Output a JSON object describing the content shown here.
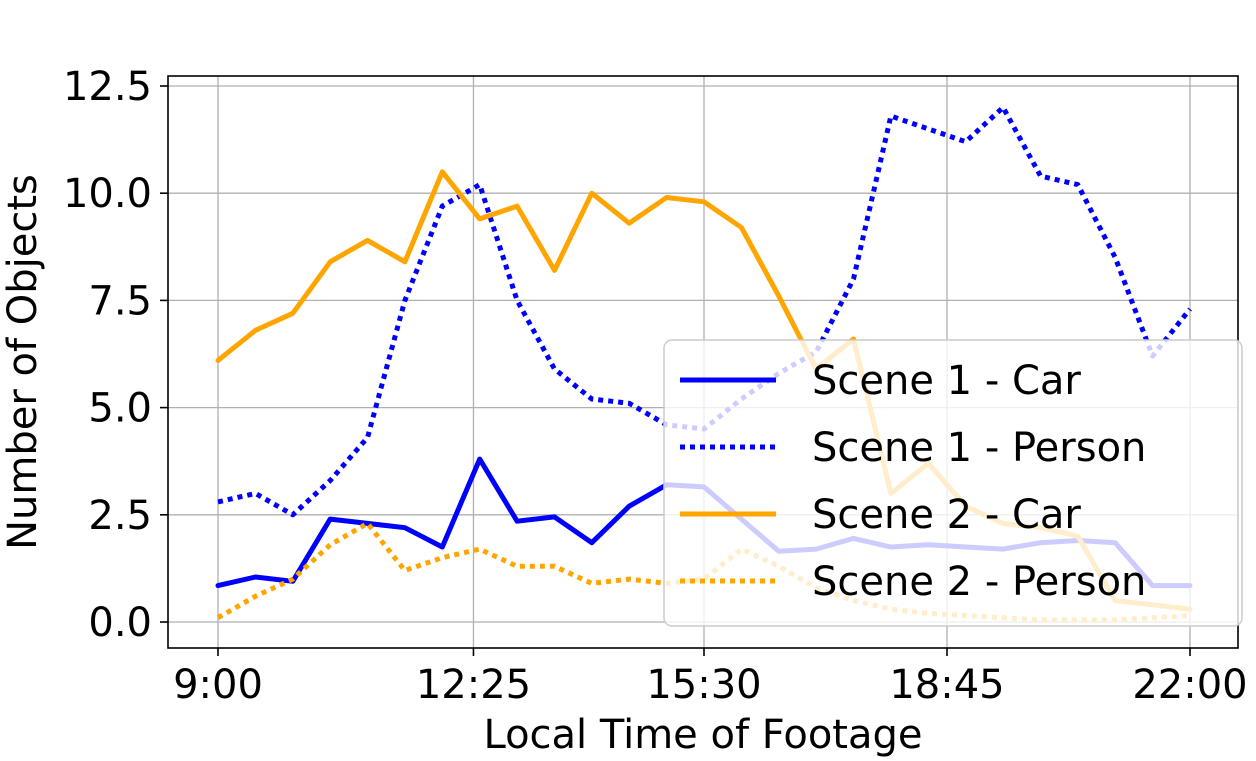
{
  "chart_data": {
    "type": "line",
    "xlabel": "Local Time of Footage",
    "ylabel": "Number of Objects",
    "x_ticks": [
      "9:00",
      "12:25",
      "15:30",
      "18:45",
      "22:00"
    ],
    "y_ticks": [
      "0.0",
      "2.5",
      "5.0",
      "7.5",
      "10.0",
      "12.5"
    ],
    "xlim": [
      "9:00",
      "22:00"
    ],
    "ylim": [
      0,
      12.5
    ],
    "grid": true,
    "legend_position": "lower-right",
    "x": [
      "9:00",
      "9:30",
      "10:00",
      "10:30",
      "11:00",
      "11:30",
      "12:00",
      "12:30",
      "13:00",
      "13:30",
      "14:00",
      "14:30",
      "15:00",
      "15:30",
      "16:00",
      "16:30",
      "17:00",
      "17:30",
      "18:00",
      "18:30",
      "19:00",
      "19:30",
      "20:00",
      "20:30",
      "21:00",
      "21:30",
      "22:00"
    ],
    "series": [
      {
        "name": "Scene 1 - Car",
        "color": "#0000ff",
        "style": "solid",
        "values": [
          0.85,
          1.05,
          0.95,
          2.4,
          2.3,
          2.2,
          1.75,
          3.8,
          2.35,
          2.45,
          1.85,
          2.7,
          3.2,
          3.15,
          2.4,
          1.65,
          1.7,
          1.95,
          1.75,
          1.8,
          1.75,
          1.7,
          1.85,
          1.9,
          1.85,
          0.85,
          0.85
        ]
      },
      {
        "name": "Scene 1 - Person",
        "color": "#0000ff",
        "style": "dotted",
        "values": [
          2.8,
          3.0,
          2.5,
          3.3,
          4.3,
          7.5,
          9.7,
          10.2,
          7.5,
          5.9,
          5.2,
          5.1,
          4.6,
          4.5,
          5.2,
          5.8,
          6.3,
          8.0,
          11.8,
          11.5,
          11.2,
          12.0,
          10.4,
          10.2,
          8.5,
          6.2,
          7.3
        ]
      },
      {
        "name": "Scene 2 - Car",
        "color": "#ffa500",
        "style": "solid",
        "values": [
          6.1,
          6.8,
          7.2,
          8.4,
          8.9,
          8.4,
          10.5,
          9.4,
          9.7,
          8.2,
          10.0,
          9.3,
          9.9,
          9.8,
          9.2,
          7.6,
          5.9,
          6.6,
          3.0,
          3.7,
          2.7,
          2.3,
          2.2,
          2.0,
          0.5,
          0.4,
          0.3
        ]
      },
      {
        "name": "Scene 2 - Person",
        "color": "#ffa500",
        "style": "dotted",
        "values": [
          0.1,
          0.6,
          1.0,
          1.8,
          2.3,
          1.2,
          1.5,
          1.7,
          1.3,
          1.3,
          0.9,
          1.0,
          0.9,
          1.0,
          1.7,
          1.3,
          0.8,
          0.5,
          0.3,
          0.2,
          0.15,
          0.1,
          0.05,
          0.05,
          0.05,
          0.1,
          0.15
        ]
      }
    ]
  }
}
